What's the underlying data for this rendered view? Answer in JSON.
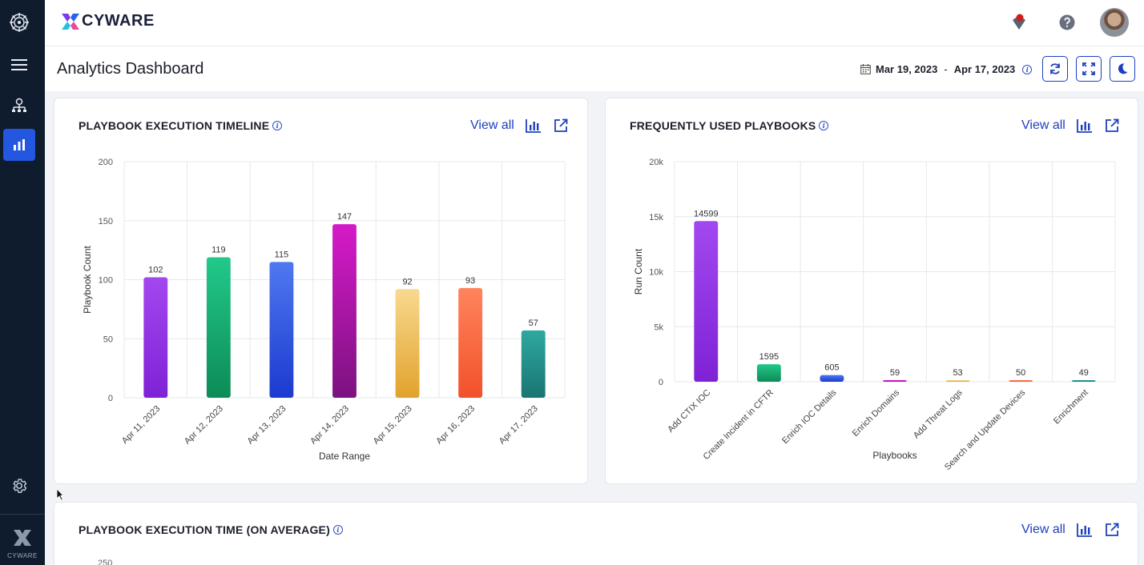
{
  "brand": {
    "name": "CYWARE",
    "sidebar_label": "CYWARE"
  },
  "header": {
    "title": "Analytics Dashboard",
    "date_start": "Mar 19, 2023",
    "date_sep": "-",
    "date_end": "Apr 17, 2023"
  },
  "cards": {
    "timeline": {
      "title": "PLAYBOOK EXECUTION TIMELINE",
      "view_all": "View all"
    },
    "frequent": {
      "title": "FREQUENTLY USED PLAYBOOKS",
      "view_all": "View all"
    },
    "avgtime": {
      "title": "PLAYBOOK EXECUTION TIME (ON AVERAGE)",
      "view_all": "View all",
      "partial_tick": "250"
    }
  },
  "chart_data": [
    {
      "type": "bar",
      "categories": [
        "Apr 11, 2023",
        "Apr 12, 2023",
        "Apr 13, 2023",
        "Apr 14, 2023",
        "Apr 15, 2023",
        "Apr 16, 2023",
        "Apr 17, 2023"
      ],
      "values": [
        102,
        119,
        115,
        147,
        92,
        93,
        57
      ],
      "title": "PLAYBOOK EXECUTION TIMELINE",
      "xlabel": "Date Range",
      "ylabel": "Playbook Count",
      "ylim": [
        0,
        200
      ],
      "yticks": [
        0,
        50,
        100,
        150,
        200
      ],
      "ytick_labels": [
        "0",
        "50",
        "100",
        "150",
        "200"
      ],
      "grid": true,
      "colors": [
        [
          "#a347f0",
          "#7f22d6"
        ],
        [
          "#22c98a",
          "#0d8b57"
        ],
        [
          "#4f78f0",
          "#1b3ad0"
        ],
        [
          "#d61ac9",
          "#7b1280"
        ],
        [
          "#f8d98f",
          "#e2a22c"
        ],
        [
          "#ff845c",
          "#f2512a"
        ],
        [
          "#2ea89f",
          "#1a7573"
        ]
      ]
    },
    {
      "type": "bar",
      "categories": [
        "Add CTIX IOC",
        "Create Incident in CFTR",
        "Enrich IOC Details",
        "Enrich Domains",
        "Add Threat Logs",
        "Search and Update Devices",
        "Enrichment"
      ],
      "values": [
        14599,
        1595,
        605,
        59,
        53,
        50,
        49
      ],
      "title": "FREQUENTLY USED PLAYBOOKS",
      "xlabel": "Playbooks",
      "ylabel": "Run Count",
      "ylim": [
        0,
        20000
      ],
      "yticks": [
        0,
        5000,
        10000,
        15000,
        20000
      ],
      "ytick_labels": [
        "0",
        "5k",
        "10k",
        "15k",
        "20k"
      ],
      "grid": true,
      "colors": [
        [
          "#a347f0",
          "#7f22d6"
        ],
        [
          "#22c98a",
          "#0d8b57"
        ],
        [
          "#4f78f0",
          "#1b3ad0"
        ],
        [
          "#d61ac9",
          "#a318b8"
        ],
        [
          "#f8d98f",
          "#e2a22c"
        ],
        [
          "#ff845c",
          "#f2512a"
        ],
        [
          "#2ea89f",
          "#1a7573"
        ]
      ]
    }
  ]
}
